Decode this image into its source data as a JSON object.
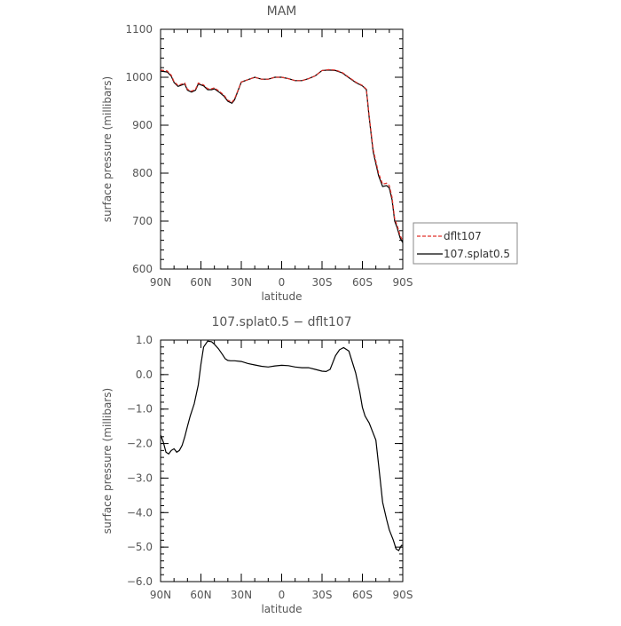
{
  "chart_data": [
    {
      "type": "line",
      "title": "MAM",
      "xlabel": "latitude",
      "ylabel": "surface pressure (millibars)",
      "xlim": [
        90,
        -90
      ],
      "ylim": [
        600,
        1100
      ],
      "xticks": [
        90,
        60,
        30,
        0,
        -30,
        -60,
        -90
      ],
      "xtick_labels": [
        "90N",
        "60N",
        "30N",
        "0",
        "30S",
        "60S",
        "90S"
      ],
      "yticks": [
        600,
        700,
        800,
        900,
        1000,
        1100
      ],
      "ytick_labels": [
        "600",
        "700",
        "800",
        "900",
        "1000",
        "1100"
      ],
      "grid": false,
      "legend": "outside-right",
      "series": [
        {
          "name": "dflt107",
          "color": "#e0302a",
          "dash": "dashed",
          "x": [
            90,
            85,
            82,
            80,
            77,
            74,
            72,
            70,
            67,
            64,
            62,
            58,
            55,
            52,
            50,
            46,
            43,
            40,
            37,
            35,
            30,
            25,
            20,
            15,
            10,
            5,
            0,
            -5,
            -10,
            -15,
            -20,
            -25,
            -30,
            -35,
            -40,
            -45,
            -50,
            -55,
            -60,
            -63,
            -65,
            -68,
            -72,
            -75,
            -78,
            -80,
            -82,
            -84,
            -86,
            -88,
            -90
          ],
          "y": [
            1015,
            1013,
            1004,
            991,
            983,
            986,
            988,
            975,
            971,
            975,
            988,
            984,
            976,
            976,
            978,
            970,
            963,
            952,
            948,
            955,
            990,
            995,
            1000,
            996,
            996,
            1000,
            1000,
            997,
            993,
            993,
            997,
            1003,
            1014,
            1016,
            1015,
            1010,
            1000,
            990,
            983,
            975,
            920,
            850,
            800,
            777,
            779,
            774,
            750,
            705,
            690,
            670,
            659
          ]
        },
        {
          "name": "107.splat0.5",
          "color": "#000000",
          "dash": "solid",
          "x": [
            90,
            85,
            82,
            80,
            77,
            74,
            72,
            70,
            67,
            64,
            62,
            58,
            55,
            52,
            50,
            46,
            43,
            40,
            37,
            35,
            30,
            25,
            20,
            15,
            10,
            5,
            0,
            -5,
            -10,
            -15,
            -20,
            -25,
            -30,
            -35,
            -40,
            -45,
            -50,
            -55,
            -60,
            -63,
            -65,
            -68,
            -72,
            -75,
            -78,
            -80,
            -82,
            -84,
            -86,
            -88,
            -90
          ],
          "y": [
            1013,
            1011,
            1002,
            989,
            981,
            984,
            986,
            973,
            969,
            973,
            986,
            982,
            974,
            974,
            976,
            968,
            961,
            950,
            946,
            953,
            990,
            995,
            1000,
            996,
            996,
            1000,
            1000,
            997,
            993,
            993,
            997,
            1003,
            1014,
            1015,
            1014,
            1009,
            999,
            989,
            982,
            974,
            917,
            845,
            795,
            772,
            774,
            769,
            745,
            700,
            685,
            665,
            655
          ]
        }
      ]
    },
    {
      "type": "line",
      "title": "107.splat0.5 − dflt107",
      "xlabel": "latitude",
      "ylabel": "surface pressure (millibars)",
      "xlim": [
        90,
        -90
      ],
      "ylim": [
        -6,
        1
      ],
      "xticks": [
        90,
        60,
        30,
        0,
        -30,
        -60,
        -90
      ],
      "xtick_labels": [
        "90N",
        "60N",
        "30N",
        "0",
        "30S",
        "60S",
        "90S"
      ],
      "yticks": [
        -6,
        -5,
        -4,
        -3,
        -2,
        -1,
        0,
        1
      ],
      "ytick_labels": [
        "−6.0",
        "−5.0",
        "−4.0",
        "−3.0",
        "−2.0",
        "−1.0",
        "0.0",
        "1.0"
      ],
      "grid": false,
      "series": [
        {
          "color": "#000000",
          "dash": "solid",
          "x": [
            90,
            88,
            86,
            84,
            82,
            80,
            78,
            76,
            74,
            72,
            70,
            68,
            65,
            62,
            60,
            58,
            55,
            52,
            50,
            47,
            44,
            42,
            40,
            38,
            35,
            30,
            25,
            20,
            15,
            10,
            5,
            0,
            -5,
            -10,
            -15,
            -20,
            -25,
            -30,
            -33,
            -36,
            -40,
            -43,
            -46,
            -50,
            -55,
            -58,
            -60,
            -62,
            -65,
            -70,
            -72,
            -75,
            -78,
            -80,
            -83,
            -85,
            -87,
            -89,
            -90
          ],
          "y": [
            -1.75,
            -1.95,
            -2.25,
            -2.3,
            -2.2,
            -2.15,
            -2.25,
            -2.2,
            -2.05,
            -1.8,
            -1.5,
            -1.2,
            -0.85,
            -0.3,
            0.3,
            0.8,
            0.97,
            0.95,
            0.88,
            0.75,
            0.58,
            0.46,
            0.41,
            0.4,
            0.4,
            0.38,
            0.32,
            0.28,
            0.24,
            0.22,
            0.25,
            0.27,
            0.26,
            0.22,
            0.2,
            0.2,
            0.15,
            0.1,
            0.09,
            0.15,
            0.55,
            0.72,
            0.78,
            0.68,
            0.05,
            -0.5,
            -0.95,
            -1.2,
            -1.4,
            -1.9,
            -2.6,
            -3.7,
            -4.2,
            -4.5,
            -4.8,
            -5.05,
            -5.1,
            -4.95,
            -4.95
          ]
        }
      ]
    }
  ],
  "legend_entries": [
    "dflt107",
    "107.splat0.5"
  ]
}
